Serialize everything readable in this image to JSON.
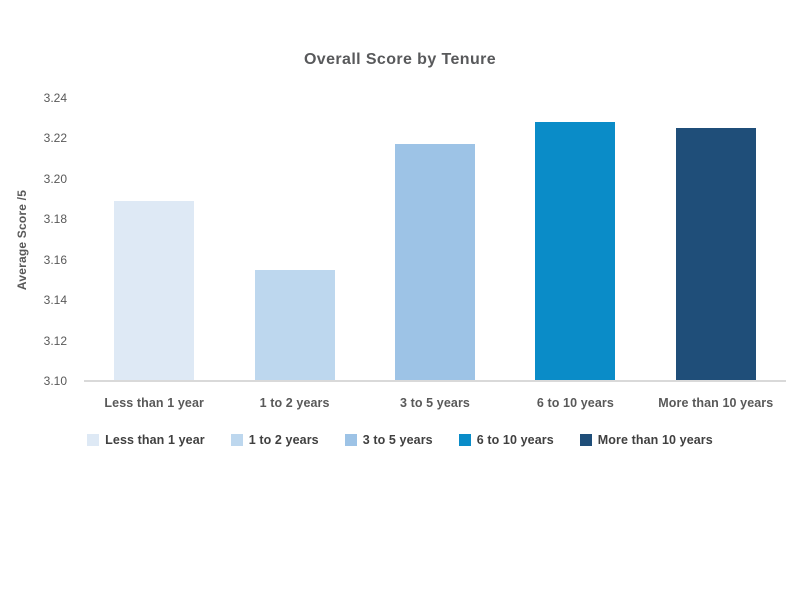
{
  "chart_data": {
    "type": "bar",
    "title": "Overall Score by Tenure",
    "xlabel": "",
    "ylabel": "Average Score /5",
    "categories": [
      "Less than 1 year",
      "1 to 2 years",
      "3 to 5 years",
      "6 to 10 years",
      "More than 10 years"
    ],
    "values": [
      3.189,
      3.155,
      3.217,
      3.228,
      3.225
    ],
    "bar_colors": [
      "#dee9f5",
      "#bdd7ee",
      "#9dc3e6",
      "#0a8cc8",
      "#1f4e79"
    ],
    "ylim": [
      3.1,
      3.24
    ],
    "ytick_step": 0.02,
    "yticks": [
      "3.10",
      "3.12",
      "3.14",
      "3.16",
      "3.18",
      "3.20",
      "3.22",
      "3.24"
    ],
    "legend": [
      "Less than 1 year",
      "1 to 2 years",
      "3 to 5 years",
      "6 to 10 years",
      "More than 10 years"
    ],
    "legend_position": "bottom",
    "grid": false,
    "colors": {
      "background": "#ffffff",
      "title_text": "#58595b",
      "axis_text": "#595959",
      "legend_text": "#404040",
      "axis_line": "#d9d9d9"
    }
  }
}
